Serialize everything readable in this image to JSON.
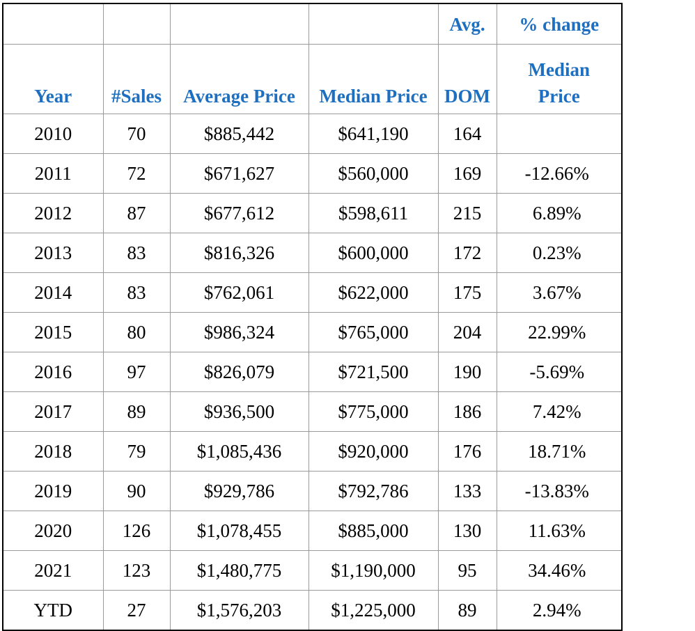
{
  "header": {
    "top_dom": "Avg.",
    "top_change": "% change",
    "year": "Year",
    "sales": "#Sales",
    "avg_price": "Average Price",
    "median_price": "Median Price",
    "dom": "DOM",
    "median_price_line1": "Median",
    "median_price_line2": "Price"
  },
  "rows": [
    {
      "year": "2010",
      "sales": "70",
      "avg": "$885,442",
      "median": "$641,190",
      "dom": "164",
      "change": ""
    },
    {
      "year": "2011",
      "sales": "72",
      "avg": "$671,627",
      "median": "$560,000",
      "dom": "169",
      "change": "-12.66%"
    },
    {
      "year": "2012",
      "sales": "87",
      "avg": "$677,612",
      "median": "$598,611",
      "dom": "215",
      "change": "6.89%"
    },
    {
      "year": "2013",
      "sales": "83",
      "avg": "$816,326",
      "median": "$600,000",
      "dom": "172",
      "change": "0.23%"
    },
    {
      "year": "2014",
      "sales": "83",
      "avg": "$762,061",
      "median": "$622,000",
      "dom": "175",
      "change": "3.67%"
    },
    {
      "year": "2015",
      "sales": "80",
      "avg": "$986,324",
      "median": "$765,000",
      "dom": "204",
      "change": "22.99%"
    },
    {
      "year": "2016",
      "sales": "97",
      "avg": "$826,079",
      "median": "$721,500",
      "dom": "190",
      "change": "-5.69%"
    },
    {
      "year": "2017",
      "sales": "89",
      "avg": "$936,500",
      "median": "$775,000",
      "dom": "186",
      "change": "7.42%"
    },
    {
      "year": "2018",
      "sales": "79",
      "avg": "$1,085,436",
      "median": "$920,000",
      "dom": "176",
      "change": "18.71%"
    },
    {
      "year": "2019",
      "sales": "90",
      "avg": "$929,786",
      "median": "$792,786",
      "dom": "133",
      "change": "-13.83%"
    },
    {
      "year": "2020",
      "sales": "126",
      "avg": "$1,078,455",
      "median": "$885,000",
      "dom": "130",
      "change": "11.63%"
    },
    {
      "year": "2021",
      "sales": "123",
      "avg": "$1,480,775",
      "median": "$1,190,000",
      "dom": "95",
      "change": "34.46%"
    },
    {
      "year": "YTD",
      "sales": "27",
      "avg": "$1,576,203",
      "median": "$1,225,000",
      "dom": "89",
      "change": "2.94%"
    }
  ]
}
